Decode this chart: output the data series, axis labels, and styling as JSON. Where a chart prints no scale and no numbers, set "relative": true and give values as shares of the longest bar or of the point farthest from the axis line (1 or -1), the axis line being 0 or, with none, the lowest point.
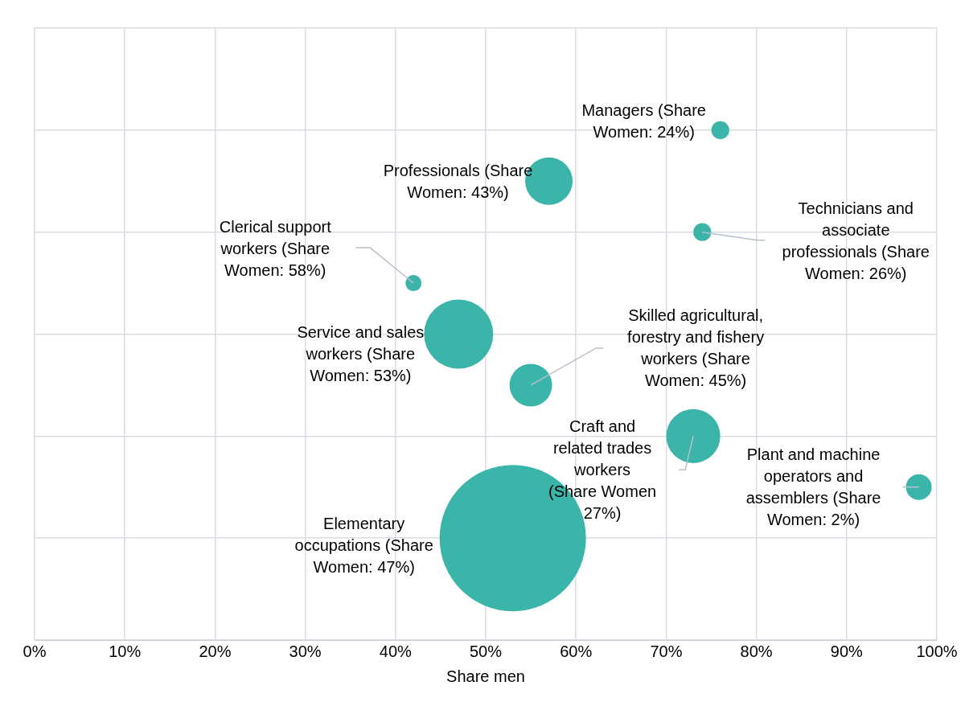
{
  "chart_data": {
    "type": "bubble",
    "xlabel": "Share men",
    "relative": true,
    "grid": true,
    "x": [
      76,
      57,
      74,
      42,
      47,
      55,
      73,
      98,
      53
    ],
    "values": [
      1,
      0.9,
      0.8,
      0.7,
      0.6,
      0.5,
      0.4,
      0.3,
      0.2
    ],
    "sizes": [
      0.015,
      0.105,
      0.015,
      0.012,
      0.223,
      0.085,
      0.136,
      0.031,
      1
    ],
    "color": "#3bb5aa",
    "xlim": [
      0,
      100
    ],
    "xticks": [
      {
        "value": 0,
        "label": "0%"
      },
      {
        "value": 10,
        "label": "10%"
      },
      {
        "value": 20,
        "label": "20%"
      },
      {
        "value": 30,
        "label": "30%"
      },
      {
        "value": 40,
        "label": "40%"
      },
      {
        "value": 50,
        "label": "50%"
      },
      {
        "value": 60,
        "label": "60%"
      },
      {
        "value": 70,
        "label": "70%"
      },
      {
        "value": 80,
        "label": "80%"
      },
      {
        "value": 90,
        "label": "90%"
      },
      {
        "value": 100,
        "label": "100%"
      }
    ],
    "annotations": [
      "Managers (Share Women: 24%)",
      "Professionals (Share Women: 43%)",
      "Technicians and associate professionals (Share Women: 26%)",
      "Clerical support workers (Share Women: 58%)",
      "Service and sales workers (Share Women: 53%)",
      "Skilled agricultural, forestry and fishery workers (Share Women: 45%)",
      "Craft and related trades workers (Share Women 27%)",
      "Plant and machine operators and assemblers (Share Women: 2%)",
      "Elementary occupations (Share Women: 47%)"
    ]
  }
}
